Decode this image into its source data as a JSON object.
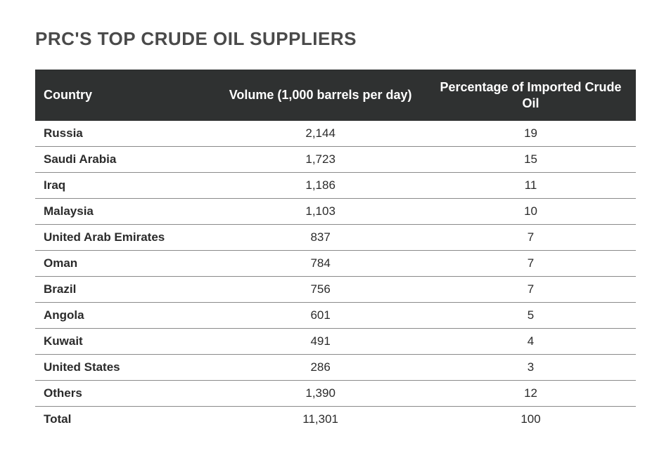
{
  "title": "PRC'S TOP CRUDE OIL SUPPLIERS",
  "table": {
    "columns": {
      "country": "Country",
      "volume": "Volume (1,000 barrels per day)",
      "percentage": "Percentage of Imported Crude Oil"
    },
    "header_bg": "#2f3131",
    "header_text_color": "#ffffff",
    "row_border_color": "#8a8a8a",
    "body_text_color": "#2b2b2b",
    "title_color": "#4a4a4a",
    "column_alignment": [
      "left",
      "center",
      "center"
    ],
    "column_widths_pct": [
      30,
      35,
      35
    ],
    "header_fontsize": 18,
    "body_fontsize": 17,
    "title_fontsize": 26,
    "rows": [
      {
        "country": "Russia",
        "volume": "2,144",
        "percentage": "19"
      },
      {
        "country": "Saudi Arabia",
        "volume": "1,723",
        "percentage": "15"
      },
      {
        "country": "Iraq",
        "volume": "1,186",
        "percentage": "11"
      },
      {
        "country": "Malaysia",
        "volume": "1,103",
        "percentage": "10"
      },
      {
        "country": "United Arab Emirates",
        "volume": "837",
        "percentage": "7"
      },
      {
        "country": "Oman",
        "volume": "784",
        "percentage": "7"
      },
      {
        "country": "Brazil",
        "volume": "756",
        "percentage": "7"
      },
      {
        "country": "Angola",
        "volume": "601",
        "percentage": "5"
      },
      {
        "country": "Kuwait",
        "volume": "491",
        "percentage": "4"
      },
      {
        "country": "United States",
        "volume": "286",
        "percentage": "3"
      },
      {
        "country": "Others",
        "volume": "1,390",
        "percentage": "12"
      },
      {
        "country": "Total",
        "volume": "11,301",
        "percentage": "100"
      }
    ]
  }
}
